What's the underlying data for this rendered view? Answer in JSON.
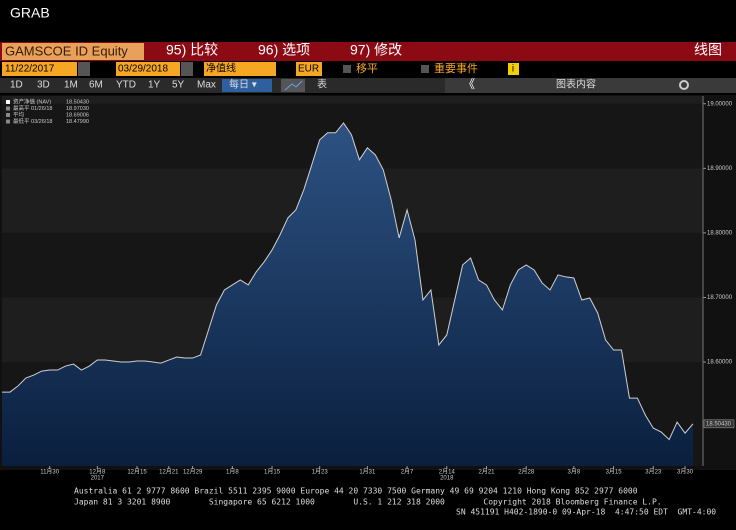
{
  "window": {
    "title": "GRAB"
  },
  "toolbar1": {
    "ticker": "GAMSCOE ID Equity",
    "menu1": "95) 比较",
    "menu2": "96) 选项",
    "menu3": "97) 修改",
    "view": "线图"
  },
  "toolbar2": {
    "start_date": "11/22/2017",
    "end_date": "03/29/2018",
    "field": "净值线",
    "currency": "EUR",
    "check1": "移平",
    "check2": "重要事件",
    "info": "i",
    "collapse": "《",
    "contents": "图表内容"
  },
  "toolbar3": {
    "ranges": [
      "1D",
      "3D",
      "1M",
      "6M",
      "YTD",
      "1Y",
      "5Y",
      "Max"
    ],
    "period": "每日 ▾",
    "table": "表"
  },
  "legend": [
    {
      "label": "资产净值 (NAV)",
      "value": "18.50430"
    },
    {
      "label": "最高平 01/26/18",
      "value": "18.97030"
    },
    {
      "label": "平均",
      "value": "18.69006"
    },
    {
      "label": "最低平 03/26/18",
      "value": "18.47990"
    }
  ],
  "chart_data": {
    "type": "area",
    "color": "#d0d0d0",
    "categories": [
      null,
      null,
      null,
      null,
      null,
      null,
      "11月30",
      null,
      null,
      null,
      null,
      null,
      "12月8",
      null,
      null,
      null,
      null,
      "12月15",
      null,
      null,
      null,
      "12月21",
      null,
      null,
      "12月29",
      null,
      null,
      null,
      null,
      "1月8",
      null,
      null,
      null,
      null,
      "1月15",
      null,
      null,
      null,
      null,
      null,
      "1月23",
      null,
      null,
      null,
      null,
      null,
      "1月31",
      null,
      null,
      null,
      null,
      "2月7",
      null,
      null,
      null,
      null,
      "2月14",
      null,
      null,
      null,
      null,
      "2月21",
      null,
      null,
      null,
      null,
      "2月28",
      null,
      null,
      null,
      null,
      null,
      "3月8",
      null,
      null,
      null,
      null,
      "3月15",
      null,
      null,
      null,
      null,
      "3月23",
      null,
      null,
      null,
      "3月30",
      null
    ],
    "years": [
      null,
      null,
      null,
      null,
      null,
      null,
      null,
      null,
      null,
      null,
      null,
      null,
      "2017",
      null,
      null,
      null,
      null,
      null,
      null,
      null,
      null,
      null,
      null,
      null,
      null,
      null,
      null,
      null,
      null,
      null,
      null,
      null,
      null,
      null,
      null,
      null,
      null,
      null,
      null,
      null,
      null,
      null,
      null,
      null,
      null,
      null,
      null,
      null,
      null,
      null,
      null,
      null,
      null,
      null,
      null,
      null,
      "2018",
      null,
      null,
      null,
      null,
      null,
      null,
      null,
      null,
      null,
      null,
      null,
      null,
      null,
      null,
      null,
      null,
      null,
      null,
      null,
      null,
      null,
      null,
      null,
      null,
      null,
      null,
      null,
      null,
      null,
      null,
      null
    ],
    "values": [
      18.5535,
      18.5535,
      18.5628,
      18.5752,
      18.5798,
      18.586,
      18.5876,
      18.5876,
      18.5938,
      18.5969,
      18.5876,
      18.5938,
      18.6031,
      18.6031,
      18.6016,
      18.6,
      18.6,
      18.6016,
      18.6016,
      18.6,
      18.5984,
      18.6031,
      18.6078,
      18.6062,
      18.6062,
      18.6109,
      18.6496,
      18.6884,
      18.7116,
      18.7194,
      18.7271,
      18.7194,
      18.7395,
      18.755,
      18.7736,
      18.7969,
      18.8233,
      18.8357,
      18.8667,
      18.9054,
      18.9442,
      18.955,
      18.955,
      18.9703,
      18.9519,
      18.9132,
      18.9318,
      18.9209,
      18.8977,
      18.8512,
      18.7922,
      18.8357,
      18.7891,
      18.6961,
      18.7116,
      18.6264,
      18.6419,
      18.6961,
      18.7504,
      18.7612,
      18.7271,
      18.7194,
      18.6961,
      18.6806,
      18.7194,
      18.7426,
      18.7504,
      18.7426,
      18.7225,
      18.7116,
      18.7349,
      18.7318,
      18.7302,
      18.6961,
      18.6992,
      18.676,
      18.6341,
      18.6186,
      18.6186,
      18.5442,
      18.5442,
      18.5178,
      18.4977,
      18.4915,
      18.4799,
      18.507,
      18.4899,
      18.5043
    ],
    "ylim": [
      18.439,
      19.012
    ],
    "yticks": [
      {
        "value": 18.6,
        "label": "18.60000"
      },
      {
        "value": 18.7,
        "label": "18.70000"
      },
      {
        "value": 18.8,
        "label": "18.80000"
      },
      {
        "value": 18.9,
        "label": "18.90000"
      },
      {
        "value": 19.0,
        "label": "19.00000"
      }
    ]
  },
  "footer": {
    "line1": "Australia 61 2 9777 8600 Brazil 5511 2395 9000 Europe 44 20 7330 7500 Germany 49 69 9204 1210 Hong Kong 852 2977 6000",
    "line2": "Japan 81 3 3201 8900        Singapore 65 6212 1000        U.S. 1 212 318 2000        Copyright 2018 Bloomberg Finance L.P.",
    "line3": "SN 451191 H402-1890-0 09-Apr-18  4:47:50 EDT  GMT-4:00"
  }
}
